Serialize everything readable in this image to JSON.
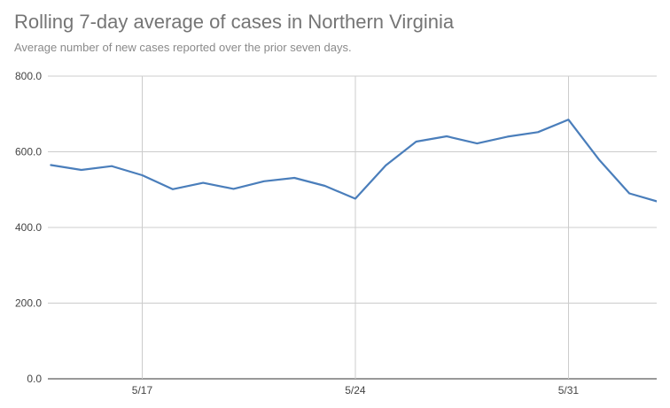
{
  "header": {
    "title": "Rolling 7-day average of cases in Northern Virginia",
    "subtitle": "Average number of new cases reported over the prior seven days."
  },
  "chart_data": {
    "type": "line",
    "title": "Rolling 7-day average of cases in Northern Virginia",
    "subtitle": "Average number of new cases reported over the prior seven days.",
    "xlabel": "",
    "ylabel": "",
    "x_ticks": [
      "5/17",
      "5/24",
      "5/31"
    ],
    "y_ticks": [
      "0.0",
      "200.0",
      "400.0",
      "600.0",
      "800.0"
    ],
    "ylim": [
      0,
      800
    ],
    "x_range_days": [
      -3.1,
      16.9
    ],
    "x_tick_days": [
      0,
      7,
      14
    ],
    "grid": {
      "x": true,
      "y": true
    },
    "legend": "none",
    "line_color": "#4a7ebb",
    "grid_color": "#cccccc",
    "series": [
      {
        "x": [
          "5/14",
          "5/15",
          "5/16",
          "5/17",
          "5/18",
          "5/19",
          "5/20",
          "5/21",
          "5/22",
          "5/23",
          "5/24",
          "5/25",
          "5/26",
          "5/27",
          "5/28",
          "5/29",
          "5/30",
          "5/31",
          "6/1",
          "6/2",
          "6/3"
        ],
        "x_days": [
          -3,
          -2,
          -1,
          0,
          1,
          2,
          3,
          4,
          5,
          6,
          7,
          8,
          9,
          10,
          11,
          12,
          13,
          14,
          15,
          16,
          17
        ],
        "values": [
          565,
          552,
          562,
          538,
          501,
          518,
          502,
          522,
          531,
          510,
          476,
          564,
          627,
          641,
          622,
          640,
          652,
          685,
          580,
          490,
          467
        ]
      }
    ]
  }
}
